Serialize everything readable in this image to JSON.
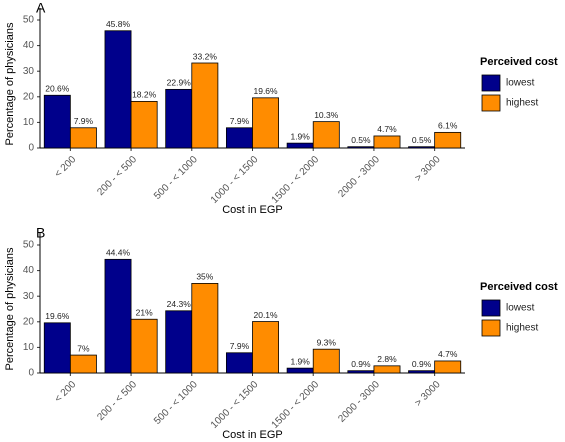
{
  "chart_data": [
    {
      "type": "bar",
      "title": "A",
      "xlabel": "Cost in EGP",
      "ylabel": "Percentage of physicians",
      "categories": [
        "< 200",
        "200 - < 500",
        "500 - < 1000",
        "1000 - < 1500",
        "1500 - < 2000",
        "2000 - 3000",
        "> 3000"
      ],
      "series": [
        {
          "name": "lowest",
          "color": "#00008b",
          "values": [
            20.6,
            45.8,
            22.9,
            7.9,
            1.9,
            0.5,
            0.5
          ],
          "value_labels": [
            "20.6%",
            "45.8%",
            "22.9%",
            "7.9%",
            "1.9%",
            "0.5%",
            "0.5%"
          ]
        },
        {
          "name": "highest",
          "color": "#ff8c00",
          "values": [
            7.9,
            18.2,
            33.2,
            19.6,
            10.3,
            4.7,
            6.1
          ],
          "value_labels": [
            "7.9%",
            "18.2%",
            "33.2%",
            "19.6%",
            "10.3%",
            "4.7%",
            "6.1%"
          ]
        }
      ],
      "ylim": [
        0,
        50
      ],
      "yticks": [
        0,
        10,
        20,
        30,
        40,
        50
      ],
      "legend_title": "Perceived cost",
      "legend": "right"
    },
    {
      "type": "bar",
      "title": "B",
      "xlabel": "Cost in EGP",
      "ylabel": "Percentage of physicians",
      "categories": [
        "< 200",
        "200 - < 500",
        "500 - < 1000",
        "1000 - < 1500",
        "1500 - < 2000",
        "2000 - 3000",
        "> 3000"
      ],
      "series": [
        {
          "name": "lowest",
          "color": "#00008b",
          "values": [
            19.6,
            44.4,
            24.3,
            7.9,
            1.9,
            0.9,
            0.9
          ],
          "value_labels": [
            "19.6%",
            "44.4%",
            "24.3%",
            "7.9%",
            "1.9%",
            "0.9%",
            "0.9%"
          ]
        },
        {
          "name": "highest",
          "color": "#ff8c00",
          "values": [
            7,
            21,
            35,
            20.1,
            9.3,
            2.8,
            4.7
          ],
          "value_labels": [
            "7%",
            "21%",
            "35%",
            "20.1%",
            "9.3%",
            "2.8%",
            "4.7%"
          ]
        }
      ],
      "ylim": [
        0,
        50
      ],
      "yticks": [
        0,
        10,
        20,
        30,
        40,
        50
      ],
      "legend_title": "Perceived cost",
      "legend": "right"
    }
  ]
}
